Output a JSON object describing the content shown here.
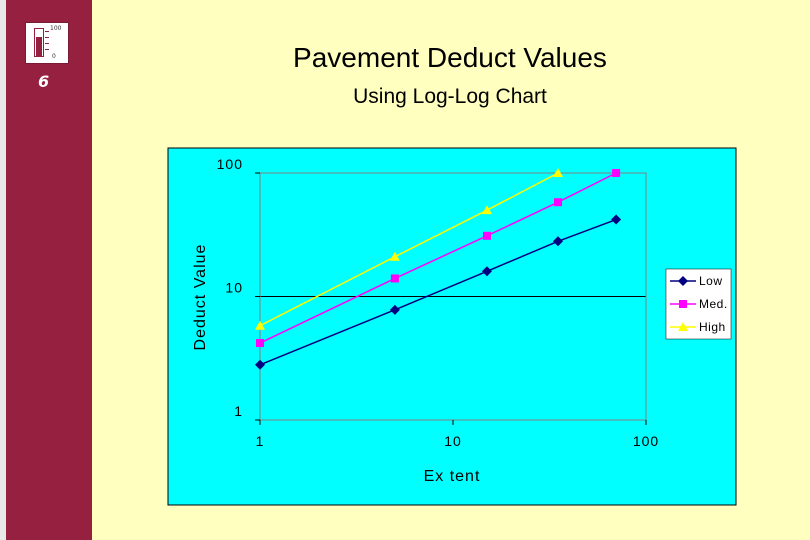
{
  "page_number": "6",
  "logo": {
    "top_label": "100",
    "bottom_label": "0"
  },
  "colors": {
    "sidebar": "#96203F",
    "background": "#FFFFC0",
    "plot_area": "#00FFFF",
    "low": "#000080",
    "med": "#FF00FF",
    "high": "#FFFF00"
  },
  "chart_data": {
    "type": "line",
    "title": "Pavement Deduct Values",
    "subtitle": "Using Log-Log  Chart",
    "xlabel": "Ex tent",
    "ylabel": "Deduct Value",
    "xscale": "log",
    "yscale": "log",
    "xlim": [
      1,
      100
    ],
    "ylim": [
      1,
      100
    ],
    "xticks": [
      "1",
      "10",
      "100"
    ],
    "yticks": [
      "1",
      "10",
      "100"
    ],
    "grid": "horizontal",
    "legend_position": "right",
    "series": [
      {
        "name": "Low",
        "x": [
          1,
          5,
          15,
          35,
          70
        ],
        "values": [
          2.8,
          7.8,
          16,
          28,
          42
        ],
        "marker": "diamond"
      },
      {
        "name": "Med.",
        "x": [
          1,
          5,
          15,
          35,
          70
        ],
        "values": [
          4.2,
          14,
          31,
          58,
          100
        ],
        "marker": "square"
      },
      {
        "name": "High",
        "x": [
          1,
          5,
          15,
          35
        ],
        "values": [
          5.8,
          21,
          50,
          100
        ],
        "marker": "triangle"
      }
    ]
  }
}
